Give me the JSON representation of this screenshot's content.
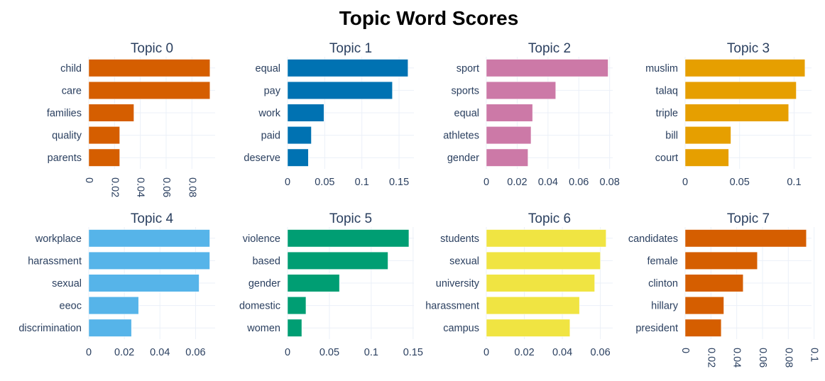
{
  "chart_data": {
    "type": "bar",
    "orientation": "horizontal",
    "title": "Topic Word Scores",
    "grid": true,
    "layout": "2x4 subplots",
    "subplots": [
      {
        "title": "Topic 0",
        "color": "#D55E00",
        "categories": [
          "child",
          "care",
          "families",
          "quality",
          "parents"
        ],
        "values": [
          0.094,
          0.094,
          0.035,
          0.024,
          0.024
        ],
        "xlim": [
          0,
          0.098
        ],
        "ticks": [
          0,
          0.02,
          0.04,
          0.06,
          0.08
        ],
        "tick_labels": [
          "0",
          "0.02",
          "0.04",
          "0.06",
          "0.08"
        ],
        "tick_rotation": 90
      },
      {
        "title": "Topic 1",
        "color": "#0072B2",
        "categories": [
          "equal",
          "pay",
          "work",
          "paid",
          "deserve"
        ],
        "values": [
          0.162,
          0.141,
          0.049,
          0.032,
          0.028
        ],
        "xlim": [
          0,
          0.17
        ],
        "ticks": [
          0,
          0.05,
          0.1,
          0.15
        ],
        "tick_labels": [
          "0",
          "0.05",
          "0.1",
          "0.15"
        ],
        "tick_rotation": 0
      },
      {
        "title": "Topic 2",
        "color": "#CC79A7",
        "categories": [
          "sport",
          "sports",
          "equal",
          "athletes",
          "gender"
        ],
        "values": [
          0.079,
          0.045,
          0.03,
          0.029,
          0.027
        ],
        "xlim": [
          0,
          0.082
        ],
        "ticks": [
          0,
          0.02,
          0.04,
          0.06,
          0.08
        ],
        "tick_labels": [
          "0",
          "0.02",
          "0.04",
          "0.06",
          "0.08"
        ],
        "tick_rotation": 0
      },
      {
        "title": "Topic 3",
        "color": "#E69F00",
        "categories": [
          "muslim",
          "talaq",
          "triple",
          "bill",
          "court"
        ],
        "values": [
          0.11,
          0.102,
          0.095,
          0.042,
          0.04
        ],
        "xlim": [
          0,
          0.116
        ],
        "ticks": [
          0,
          0.05,
          0.1
        ],
        "tick_labels": [
          "0",
          "0.05",
          "0.1"
        ],
        "tick_rotation": 0
      },
      {
        "title": "Topic 4",
        "color": "#56B4E9",
        "categories": [
          "workplace",
          "harassment",
          "sexual",
          "eeoc",
          "discrimination"
        ],
        "values": [
          0.068,
          0.068,
          0.062,
          0.028,
          0.024
        ],
        "xlim": [
          0,
          0.071
        ],
        "ticks": [
          0,
          0.02,
          0.04,
          0.06
        ],
        "tick_labels": [
          "0",
          "0.02",
          "0.04",
          "0.06"
        ],
        "tick_rotation": 0
      },
      {
        "title": "Topic 5",
        "color": "#009E73",
        "categories": [
          "violence",
          "based",
          "gender",
          "domestic",
          "women"
        ],
        "values": [
          0.145,
          0.12,
          0.062,
          0.022,
          0.017
        ],
        "xlim": [
          0,
          0.151
        ],
        "ticks": [
          0,
          0.05,
          0.1,
          0.15
        ],
        "tick_labels": [
          "0",
          "0.05",
          "0.1",
          "0.15"
        ],
        "tick_rotation": 0
      },
      {
        "title": "Topic 6",
        "color": "#F0E442",
        "categories": [
          "students",
          "sexual",
          "university",
          "harassment",
          "campus"
        ],
        "values": [
          0.063,
          0.06,
          0.057,
          0.049,
          0.044
        ],
        "xlim": [
          0,
          0.0665
        ],
        "ticks": [
          0,
          0.02,
          0.04,
          0.06
        ],
        "tick_labels": [
          "0",
          "0.02",
          "0.04",
          "0.06"
        ],
        "tick_rotation": 0
      },
      {
        "title": "Topic 7",
        "color": "#D55E00",
        "categories": [
          "candidates",
          "female",
          "clinton",
          "hillary",
          "president"
        ],
        "values": [
          0.094,
          0.056,
          0.045,
          0.03,
          0.028
        ],
        "xlim": [
          0,
          0.098
        ],
        "ticks": [
          0,
          0.02,
          0.04,
          0.06,
          0.08,
          0.1
        ],
        "tick_labels": [
          "0",
          "0.02",
          "0.04",
          "0.06",
          "0.08",
          "0.1"
        ],
        "tick_rotation": 90
      }
    ]
  }
}
